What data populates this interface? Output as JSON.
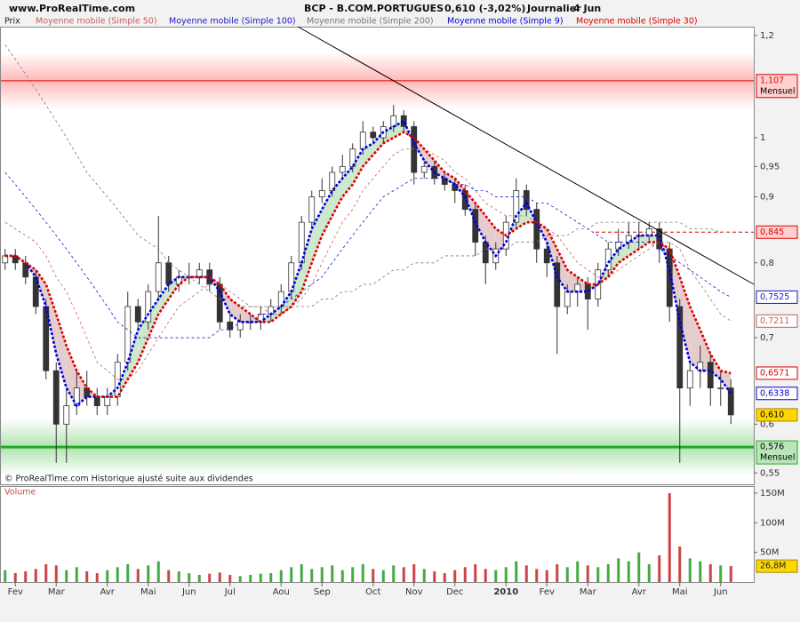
{
  "header": {
    "site": "www.ProRealTime.com",
    "instrument": "BCP - B.COM.PORTUGUES",
    "quote": "0,610 (-3,02%)",
    "period": "Journalier",
    "date": "4 Jun"
  },
  "footer": "© ProRealTime.com Historique ajusté suite aux dividendes",
  "chart_data": [
    {
      "type": "candlestick",
      "title": "Prix",
      "log_scale": true,
      "ylim": [
        0.539,
        1.219
      ],
      "yticks": [
        {
          "value": 1.2,
          "label": "1,2"
        },
        1,
        {
          "value": 0.95,
          "label": "0,95"
        },
        {
          "value": 0.9,
          "label": "0,9"
        },
        {
          "value": 0.8,
          "label": "0,8"
        },
        {
          "value": 0.7,
          "label": "0,7"
        },
        {
          "value": 0.6,
          "label": "0,6"
        },
        {
          "value": 0.55,
          "label": "0,55"
        }
      ],
      "categories": [
        null,
        "Fev",
        null,
        null,
        null,
        "Mar",
        null,
        null,
        null,
        null,
        "Avr",
        null,
        null,
        null,
        "Mai",
        null,
        null,
        null,
        "Jun",
        null,
        null,
        null,
        "Jul",
        null,
        null,
        null,
        null,
        "Aou",
        null,
        null,
        null,
        "Sep",
        null,
        null,
        null,
        null,
        "Oct",
        null,
        null,
        null,
        "Nov",
        null,
        null,
        null,
        "Dec",
        null,
        null,
        null,
        null,
        "2010",
        null,
        null,
        null,
        "Fev",
        null,
        null,
        null,
        "Mar",
        null,
        null,
        null,
        null,
        "Avr",
        null,
        null,
        null,
        "Mai",
        null,
        null,
        null,
        "Jun",
        null
      ],
      "open": [
        0.8,
        0.81,
        0.8,
        0.78,
        0.74,
        0.66,
        0.6,
        0.62,
        0.64,
        0.63,
        0.62,
        0.63,
        0.67,
        0.74,
        0.72,
        0.76,
        0.8,
        0.77,
        0.78,
        0.78,
        0.79,
        0.77,
        0.72,
        0.71,
        0.72,
        0.72,
        0.73,
        0.74,
        0.76,
        0.8,
        0.86,
        0.9,
        0.91,
        0.94,
        0.95,
        0.98,
        1.01,
        1.0,
        1.02,
        1.04,
        1.02,
        0.94,
        0.95,
        0.93,
        0.92,
        0.91,
        0.88,
        0.83,
        0.8,
        0.82,
        0.86,
        0.91,
        0.88,
        0.82,
        0.8,
        0.74,
        0.76,
        0.77,
        0.75,
        0.79,
        0.82,
        0.83,
        0.84,
        0.84,
        0.85,
        0.82,
        0.74,
        0.64,
        0.66,
        0.67,
        0.64,
        0.64
      ],
      "high": [
        0.82,
        0.82,
        0.81,
        0.79,
        0.75,
        0.67,
        0.64,
        0.66,
        0.66,
        0.64,
        0.64,
        0.68,
        0.76,
        0.75,
        0.77,
        0.87,
        0.81,
        0.79,
        0.8,
        0.8,
        0.8,
        0.78,
        0.73,
        0.73,
        0.73,
        0.74,
        0.75,
        0.77,
        0.81,
        0.87,
        0.91,
        0.93,
        0.95,
        0.97,
        0.99,
        1.03,
        1.02,
        1.03,
        1.06,
        1.05,
        1.03,
        0.96,
        0.96,
        0.94,
        0.93,
        0.92,
        0.89,
        0.84,
        0.83,
        0.87,
        0.93,
        0.92,
        0.89,
        0.83,
        0.81,
        0.77,
        0.78,
        0.78,
        0.8,
        0.83,
        0.85,
        0.86,
        0.86,
        0.86,
        0.86,
        0.83,
        0.75,
        0.67,
        0.69,
        0.68,
        0.66,
        0.65
      ],
      "low": [
        0.79,
        0.79,
        0.77,
        0.73,
        0.65,
        0.56,
        0.56,
        0.61,
        0.62,
        0.61,
        0.61,
        0.62,
        0.66,
        0.71,
        0.71,
        0.75,
        0.76,
        0.76,
        0.77,
        0.77,
        0.76,
        0.71,
        0.7,
        0.7,
        0.71,
        0.71,
        0.72,
        0.73,
        0.75,
        0.79,
        0.85,
        0.89,
        0.9,
        0.93,
        0.94,
        0.97,
        0.99,
        0.99,
        1.01,
        1.01,
        0.92,
        0.93,
        0.92,
        0.91,
        0.89,
        0.87,
        0.81,
        0.77,
        0.79,
        0.81,
        0.85,
        0.87,
        0.8,
        0.78,
        0.68,
        0.73,
        0.74,
        0.71,
        0.74,
        0.78,
        0.81,
        0.82,
        0.82,
        0.83,
        0.8,
        0.72,
        0.56,
        0.62,
        0.64,
        0.62,
        0.62,
        0.6
      ],
      "close": [
        0.81,
        0.8,
        0.78,
        0.74,
        0.66,
        0.6,
        0.62,
        0.64,
        0.63,
        0.62,
        0.63,
        0.67,
        0.74,
        0.72,
        0.76,
        0.8,
        0.77,
        0.78,
        0.78,
        0.79,
        0.77,
        0.72,
        0.71,
        0.72,
        0.72,
        0.73,
        0.74,
        0.76,
        0.8,
        0.86,
        0.9,
        0.91,
        0.94,
        0.95,
        0.98,
        1.01,
        1.0,
        1.02,
        1.04,
        1.02,
        0.94,
        0.95,
        0.93,
        0.92,
        0.91,
        0.88,
        0.83,
        0.8,
        0.82,
        0.86,
        0.91,
        0.88,
        0.82,
        0.8,
        0.74,
        0.76,
        0.77,
        0.75,
        0.79,
        0.82,
        0.83,
        0.84,
        0.84,
        0.85,
        0.82,
        0.74,
        0.64,
        0.66,
        0.67,
        0.64,
        0.64,
        0.61
      ],
      "close_label": "0,610",
      "up_color": "#ffffff",
      "down_color": "#333333",
      "series": [
        {
          "name": "Moyenne mobile (Simple 50)",
          "color": "#c86060",
          "style": "thin",
          "last_label": "0,7211",
          "values": [
            0.86,
            0.85,
            0.84,
            0.83,
            0.81,
            0.78,
            0.76,
            0.73,
            0.7,
            0.67,
            0.66,
            0.65,
            0.65,
            0.66,
            0.68,
            0.7,
            0.72,
            0.74,
            0.75,
            0.76,
            0.77,
            0.77,
            0.76,
            0.75,
            0.74,
            0.74,
            0.73,
            0.73,
            0.74,
            0.75,
            0.77,
            0.8,
            0.83,
            0.86,
            0.88,
            0.91,
            0.93,
            0.95,
            0.97,
            0.98,
            0.98,
            0.98,
            0.97,
            0.96,
            0.94,
            0.93,
            0.91,
            0.89,
            0.88,
            0.87,
            0.87,
            0.87,
            0.86,
            0.85,
            0.84,
            0.82,
            0.8,
            0.79,
            0.78,
            0.78,
            0.79,
            0.8,
            0.81,
            0.82,
            0.83,
            0.83,
            0.82,
            0.79,
            0.77,
            0.75,
            0.73,
            0.7211
          ]
        },
        {
          "name": "Moyenne mobile (Simple 100)",
          "color": "#1a1acc",
          "style": "thin",
          "last_label": "0,7525",
          "values": [
            0.94,
            0.92,
            0.9,
            0.88,
            0.86,
            0.84,
            0.82,
            0.8,
            0.78,
            0.76,
            0.74,
            0.72,
            0.71,
            0.7,
            0.7,
            0.7,
            0.7,
            0.7,
            0.7,
            0.7,
            0.7,
            0.71,
            0.71,
            0.72,
            0.72,
            0.73,
            0.73,
            0.74,
            0.75,
            0.76,
            0.77,
            0.78,
            0.8,
            0.82,
            0.84,
            0.86,
            0.88,
            0.9,
            0.91,
            0.92,
            0.93,
            0.93,
            0.93,
            0.93,
            0.92,
            0.92,
            0.91,
            0.91,
            0.9,
            0.9,
            0.9,
            0.9,
            0.89,
            0.89,
            0.88,
            0.87,
            0.86,
            0.85,
            0.84,
            0.83,
            0.83,
            0.83,
            0.83,
            0.83,
            0.82,
            0.81,
            0.8,
            0.79,
            0.78,
            0.77,
            0.76,
            0.7525
          ]
        },
        {
          "name": "Moyenne mobile (Simple 200)",
          "color": "#777777",
          "style": "thin",
          "values": [
            1.18,
            1.15,
            1.12,
            1.09,
            1.06,
            1.03,
            1.0,
            0.97,
            0.94,
            0.92,
            0.9,
            0.88,
            0.86,
            0.84,
            0.83,
            0.82,
            0.8,
            0.79,
            0.78,
            0.77,
            0.76,
            0.75,
            0.75,
            0.74,
            0.74,
            0.74,
            0.74,
            0.74,
            0.74,
            0.74,
            0.74,
            0.75,
            0.75,
            0.76,
            0.76,
            0.77,
            0.77,
            0.78,
            0.79,
            0.79,
            0.8,
            0.8,
            0.8,
            0.81,
            0.81,
            0.81,
            0.81,
            0.82,
            0.82,
            0.82,
            0.83,
            0.83,
            0.83,
            0.84,
            0.84,
            0.84,
            0.85,
            0.85,
            0.86,
            0.86,
            0.86,
            0.86,
            0.86,
            0.86,
            0.86,
            0.86,
            0.86,
            0.85,
            0.85,
            0.85,
            0.845,
            0.845
          ]
        },
        {
          "name": "Moyenne mobile (Simple 9)",
          "color": "#0000dd",
          "style": "thick",
          "last_label": "0,6338",
          "values": [
            0.81,
            0.81,
            0.8,
            0.78,
            0.74,
            0.68,
            0.64,
            0.62,
            0.63,
            0.63,
            0.63,
            0.64,
            0.67,
            0.71,
            0.73,
            0.75,
            0.77,
            0.78,
            0.78,
            0.78,
            0.78,
            0.76,
            0.73,
            0.72,
            0.72,
            0.72,
            0.73,
            0.74,
            0.76,
            0.8,
            0.85,
            0.88,
            0.91,
            0.93,
            0.95,
            0.98,
            0.99,
            1.01,
            1.02,
            1.03,
            0.99,
            0.96,
            0.94,
            0.93,
            0.92,
            0.9,
            0.86,
            0.83,
            0.81,
            0.83,
            0.87,
            0.89,
            0.86,
            0.83,
            0.78,
            0.76,
            0.76,
            0.76,
            0.77,
            0.8,
            0.82,
            0.83,
            0.84,
            0.84,
            0.84,
            0.79,
            0.72,
            0.67,
            0.66,
            0.66,
            0.65,
            0.6338
          ]
        },
        {
          "name": "Moyenne mobile (Simple 30)",
          "color": "#dd0000",
          "style": "thick",
          "last_label": "0,6571",
          "values": [
            0.81,
            0.81,
            0.8,
            0.79,
            0.77,
            0.73,
            0.69,
            0.66,
            0.64,
            0.63,
            0.63,
            0.63,
            0.65,
            0.67,
            0.7,
            0.73,
            0.75,
            0.77,
            0.78,
            0.78,
            0.78,
            0.77,
            0.75,
            0.74,
            0.73,
            0.72,
            0.72,
            0.73,
            0.74,
            0.76,
            0.8,
            0.84,
            0.87,
            0.9,
            0.92,
            0.95,
            0.97,
            0.99,
            1.0,
            1.01,
            1.0,
            0.98,
            0.96,
            0.94,
            0.93,
            0.91,
            0.89,
            0.87,
            0.85,
            0.84,
            0.85,
            0.86,
            0.86,
            0.85,
            0.82,
            0.79,
            0.78,
            0.77,
            0.77,
            0.78,
            0.8,
            0.81,
            0.82,
            0.83,
            0.83,
            0.82,
            0.78,
            0.74,
            0.71,
            0.68,
            0.66,
            0.6571
          ]
        }
      ],
      "levels": [
        {
          "value": 1.107,
          "label": "1,107",
          "note": "Mensuel",
          "color": "#e00000",
          "style": "band"
        },
        {
          "value": 0.845,
          "label": "0,845",
          "color": "#e00000",
          "style": "dashed"
        },
        {
          "value": 0.576,
          "label": "0,576",
          "note": "Mensuel",
          "color": "#22aa22",
          "style": "band"
        }
      ]
    },
    {
      "type": "bar",
      "title": "Volume",
      "ylim": [
        0,
        162
      ],
      "yticks": [
        {
          "value": 50,
          "label": "50M"
        },
        {
          "value": 100,
          "label": "100M"
        },
        {
          "value": 150,
          "label": "150M"
        }
      ],
      "up_color": "#44aa44",
      "down_color": "#cc4444",
      "last_label": "26,8M",
      "values": [
        20,
        15,
        18,
        22,
        30,
        28,
        20,
        25,
        18,
        15,
        20,
        25,
        30,
        22,
        28,
        35,
        20,
        18,
        15,
        12,
        14,
        16,
        12,
        10,
        12,
        14,
        15,
        20,
        25,
        30,
        22,
        25,
        28,
        20,
        25,
        30,
        22,
        20,
        28,
        25,
        30,
        22,
        18,
        15,
        20,
        25,
        30,
        22,
        20,
        25,
        35,
        28,
        22,
        20,
        30,
        25,
        35,
        28,
        25,
        30,
        40,
        35,
        50,
        30,
        45,
        150,
        60,
        40,
        35,
        30,
        28,
        26.8
      ]
    }
  ]
}
